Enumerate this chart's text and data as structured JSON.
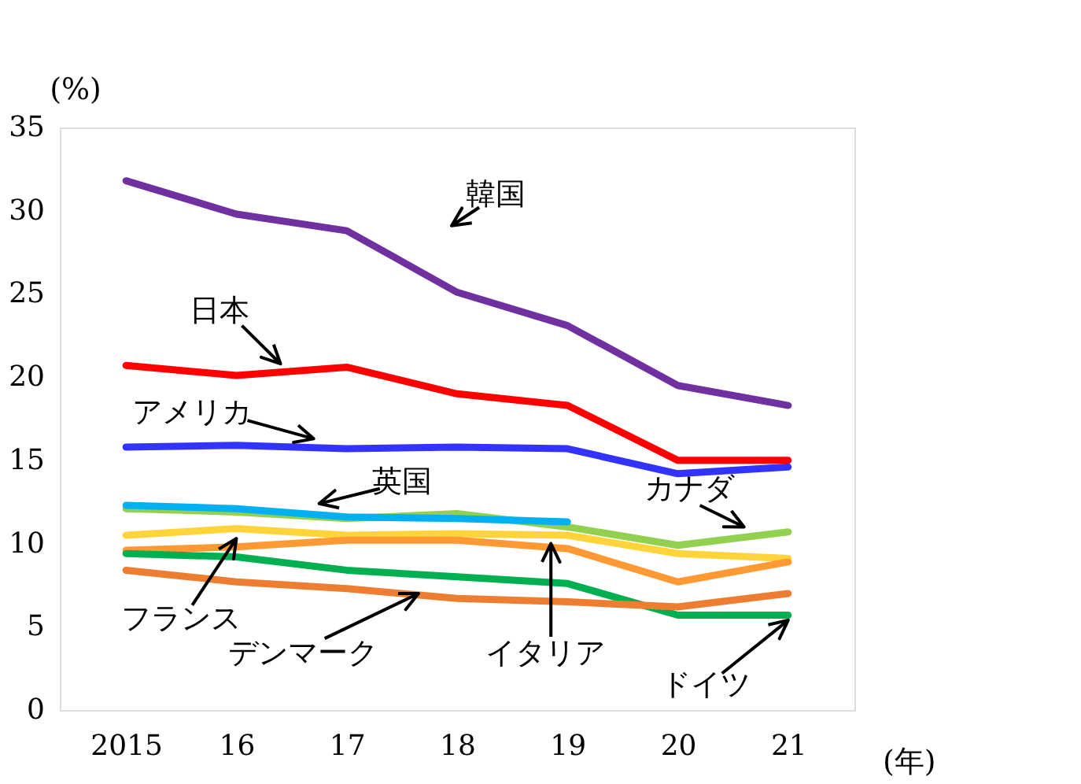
{
  "chart_data": {
    "type": "line",
    "ylabel": "(%)",
    "xlabel": "(年)",
    "categories": [
      "2015",
      "16",
      "17",
      "18",
      "19",
      "20",
      "21"
    ],
    "ylim": [
      0,
      35
    ],
    "yticks": [
      0,
      5,
      10,
      15,
      20,
      25,
      30,
      35
    ],
    "grid": false,
    "legend": false,
    "marker": "none",
    "line_style": "solid",
    "series": [
      {
        "name": "韓国",
        "color": "#7030a0",
        "values": [
          31.8,
          29.8,
          28.8,
          25.1,
          23.1,
          19.5,
          18.3
        ]
      },
      {
        "name": "日本",
        "color": "#ff0000",
        "values": [
          20.7,
          20.1,
          20.6,
          19.0,
          18.3,
          15.0,
          15.0
        ]
      },
      {
        "name": "アメリカ",
        "color": "#3333ff",
        "values": [
          15.8,
          15.9,
          15.7,
          15.8,
          15.7,
          14.2,
          14.6
        ]
      },
      {
        "name": "カナダ",
        "color": "#92d050",
        "values": [
          12.1,
          11.9,
          11.5,
          11.8,
          11.0,
          9.9,
          10.7
        ]
      },
      {
        "name": "英国",
        "color": "#00b0f0",
        "values": [
          12.3,
          12.1,
          11.6,
          11.5,
          11.3,
          null,
          null
        ]
      },
      {
        "name": "フランス",
        "color": "#ffd43b",
        "values": [
          10.5,
          10.9,
          10.5,
          10.6,
          10.5,
          9.4,
          9.1
        ]
      },
      {
        "name": "イタリア",
        "color": "#ff9933",
        "values": [
          9.6,
          9.8,
          10.2,
          10.2,
          9.7,
          7.7,
          8.9
        ]
      },
      {
        "name": "ドイツ",
        "color": "#00b050",
        "values": [
          9.4,
          9.2,
          8.4,
          8.0,
          7.6,
          5.7,
          5.7
        ]
      },
      {
        "name": "デンマーク",
        "color": "#ed7d31",
        "values": [
          8.4,
          7.7,
          7.3,
          6.7,
          6.5,
          6.2,
          7.0
        ]
      }
    ]
  }
}
